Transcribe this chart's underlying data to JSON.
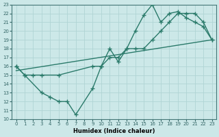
{
  "xlabel": "Humidex (Indice chaleur)",
  "bg_color": "#cce8e8",
  "grid_color": "#b0d4d4",
  "line_color": "#2a7a6a",
  "xlim": [
    -0.5,
    23.5
  ],
  "ylim": [
    10,
    23
  ],
  "xticks": [
    0,
    1,
    2,
    3,
    4,
    5,
    6,
    7,
    8,
    9,
    10,
    11,
    12,
    13,
    14,
    15,
    16,
    17,
    18,
    19,
    20,
    21,
    22,
    23
  ],
  "yticks": [
    10,
    11,
    12,
    13,
    14,
    15,
    16,
    17,
    18,
    19,
    20,
    21,
    22,
    23
  ],
  "series_upper": {
    "x": [
      0,
      1,
      2,
      3,
      5,
      9,
      10,
      11,
      12,
      13,
      14,
      15,
      16,
      17,
      18,
      19,
      20,
      21,
      22,
      23
    ],
    "y": [
      16,
      15,
      15,
      15,
      15,
      16,
      16,
      17,
      17,
      18,
      18,
      18,
      19,
      20,
      21,
      22,
      22,
      22,
      21,
      19
    ]
  },
  "series_jagged": {
    "x": [
      0,
      1,
      3,
      4,
      5,
      6,
      7,
      9,
      10,
      11,
      12,
      13,
      14,
      15,
      16,
      17,
      18,
      19,
      20,
      21,
      22,
      23
    ],
    "y": [
      16,
      15,
      13,
      12.5,
      12,
      12,
      10.5,
      13.5,
      16,
      18,
      16.5,
      18,
      20,
      21.8,
      23,
      21,
      22,
      22.2,
      21.5,
      21,
      20.5,
      19
    ]
  },
  "series_straight": {
    "x": [
      0,
      23
    ],
    "y": [
      15.5,
      19
    ]
  }
}
